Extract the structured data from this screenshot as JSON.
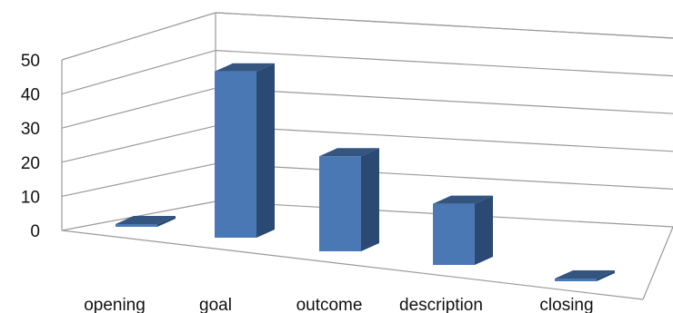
{
  "chart_data": {
    "type": "bar",
    "categories": [
      "opening",
      "goal",
      "outcome",
      "description",
      "closing"
    ],
    "values": [
      0,
      49,
      28,
      18,
      0
    ],
    "yticks": [
      "0",
      "10",
      "20",
      "30",
      "40",
      "50"
    ],
    "ylim": [
      0,
      50
    ],
    "grid": true,
    "legend": "none",
    "title": "",
    "xlabel": "",
    "ylabel": "",
    "colors": {
      "front": "#4a78b4",
      "side": "#2a4a73",
      "top": "#33557f",
      "grid": "#9a9a9a"
    }
  }
}
